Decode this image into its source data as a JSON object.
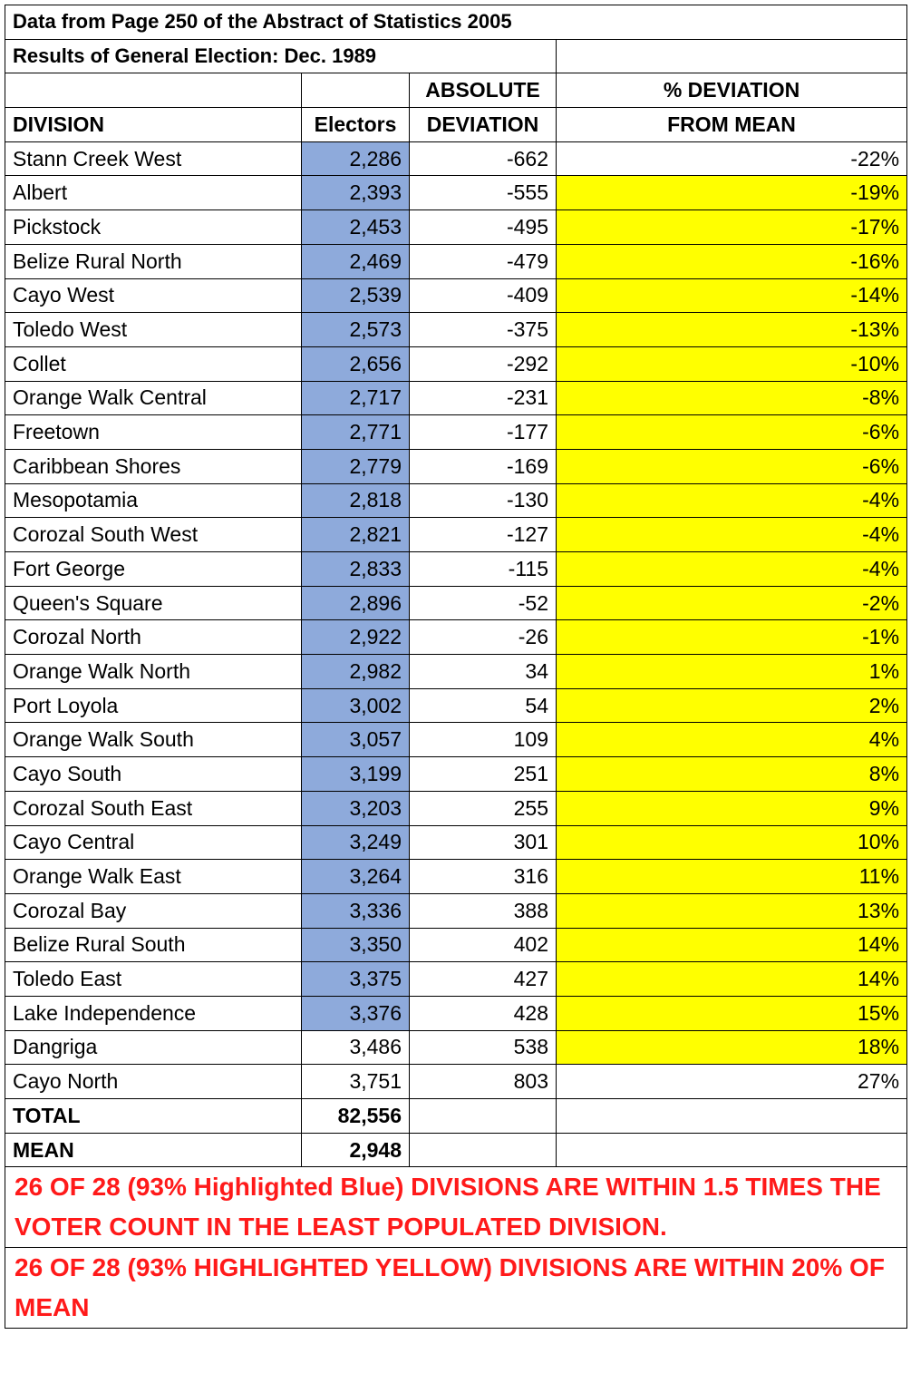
{
  "title": "Data from Page 250 of the Abstract of Statistics 2005",
  "subtitle": "Results of General Election: Dec. 1989",
  "headers": {
    "division": "DIVISION",
    "electors": "Electors",
    "abs_line1": "ABSOLUTE",
    "abs_line2": "DEVIATION",
    "pct_line1": "% DEVIATION",
    "pct_line2": "FROM MEAN"
  },
  "rows": [
    {
      "division": "Stann Creek West",
      "electors": "2,286",
      "abs": "-662",
      "pct": "-22%",
      "blue": true,
      "yellow": false
    },
    {
      "division": "Albert",
      "electors": "2,393",
      "abs": "-555",
      "pct": "-19%",
      "blue": true,
      "yellow": true
    },
    {
      "division": "Pickstock",
      "electors": "2,453",
      "abs": "-495",
      "pct": "-17%",
      "blue": true,
      "yellow": true
    },
    {
      "division": "Belize Rural North",
      "electors": "2,469",
      "abs": "-479",
      "pct": "-16%",
      "blue": true,
      "yellow": true
    },
    {
      "division": "Cayo West",
      "electors": "2,539",
      "abs": "-409",
      "pct": "-14%",
      "blue": true,
      "yellow": true
    },
    {
      "division": "Toledo West",
      "electors": "2,573",
      "abs": "-375",
      "pct": "-13%",
      "blue": true,
      "yellow": true
    },
    {
      "division": "Collet",
      "electors": "2,656",
      "abs": "-292",
      "pct": "-10%",
      "blue": true,
      "yellow": true
    },
    {
      "division": "Orange Walk Central",
      "electors": "2,717",
      "abs": "-231",
      "pct": "-8%",
      "blue": true,
      "yellow": true
    },
    {
      "division": "Freetown",
      "electors": "2,771",
      "abs": "-177",
      "pct": "-6%",
      "blue": true,
      "yellow": true
    },
    {
      "division": "Caribbean Shores",
      "electors": "2,779",
      "abs": "-169",
      "pct": "-6%",
      "blue": true,
      "yellow": true
    },
    {
      "division": "Mesopotamia",
      "electors": "2,818",
      "abs": "-130",
      "pct": "-4%",
      "blue": true,
      "yellow": true
    },
    {
      "division": "Corozal South West",
      "electors": "2,821",
      "abs": "-127",
      "pct": "-4%",
      "blue": true,
      "yellow": true
    },
    {
      "division": "Fort George",
      "electors": "2,833",
      "abs": "-115",
      "pct": "-4%",
      "blue": true,
      "yellow": true
    },
    {
      "division": "Queen's Square",
      "electors": "2,896",
      "abs": "-52",
      "pct": "-2%",
      "blue": true,
      "yellow": true
    },
    {
      "division": "Corozal North",
      "electors": "2,922",
      "abs": "-26",
      "pct": "-1%",
      "blue": true,
      "yellow": true
    },
    {
      "division": "Orange Walk North",
      "electors": "2,982",
      "abs": "34",
      "pct": "1%",
      "blue": true,
      "yellow": true
    },
    {
      "division": "Port Loyola",
      "electors": "3,002",
      "abs": "54",
      "pct": "2%",
      "blue": true,
      "yellow": true
    },
    {
      "division": "Orange Walk South",
      "electors": "3,057",
      "abs": "109",
      "pct": "4%",
      "blue": true,
      "yellow": true
    },
    {
      "division": "Cayo South",
      "electors": "3,199",
      "abs": "251",
      "pct": "8%",
      "blue": true,
      "yellow": true
    },
    {
      "division": "Corozal South East",
      "electors": "3,203",
      "abs": "255",
      "pct": "9%",
      "blue": true,
      "yellow": true
    },
    {
      "division": "Cayo Central",
      "electors": "3,249",
      "abs": "301",
      "pct": "10%",
      "blue": true,
      "yellow": true
    },
    {
      "division": "Orange Walk East",
      "electors": "3,264",
      "abs": "316",
      "pct": "11%",
      "blue": true,
      "yellow": true
    },
    {
      "division": "Corozal Bay",
      "electors": "3,336",
      "abs": "388",
      "pct": "13%",
      "blue": true,
      "yellow": true
    },
    {
      "division": "Belize Rural South",
      "electors": "3,350",
      "abs": "402",
      "pct": "14%",
      "blue": true,
      "yellow": true
    },
    {
      "division": "Toledo East",
      "electors": "3,375",
      "abs": "427",
      "pct": "14%",
      "blue": true,
      "yellow": true
    },
    {
      "division": "Lake Independence",
      "electors": "3,376",
      "abs": "428",
      "pct": "15%",
      "blue": true,
      "yellow": true
    },
    {
      "division": "Dangriga",
      "electors": "3,486",
      "abs": "538",
      "pct": "18%",
      "blue": false,
      "yellow": true
    },
    {
      "division": "Cayo North",
      "electors": "3,751",
      "abs": "803",
      "pct": "27%",
      "blue": false,
      "yellow": false
    }
  ],
  "total": {
    "label": "TOTAL",
    "value": "82,556"
  },
  "mean": {
    "label": "MEAN",
    "value": "2,948"
  },
  "notes": [
    "26 OF 28 (93% Highlighted Blue) DIVISIONS ARE WITHIN 1.5 TIMES THE VOTER COUNT IN THE LEAST POPULATED DIVISION.",
    "26 OF 28 (93% HIGHLIGHTED YELLOW) DIVISIONS  ARE WITHIN 20% OF MEAN"
  ],
  "colors": {
    "blue_highlight": "#8eaadb",
    "yellow_highlight": "#ffff00",
    "note_text": "#ff1a1a"
  }
}
